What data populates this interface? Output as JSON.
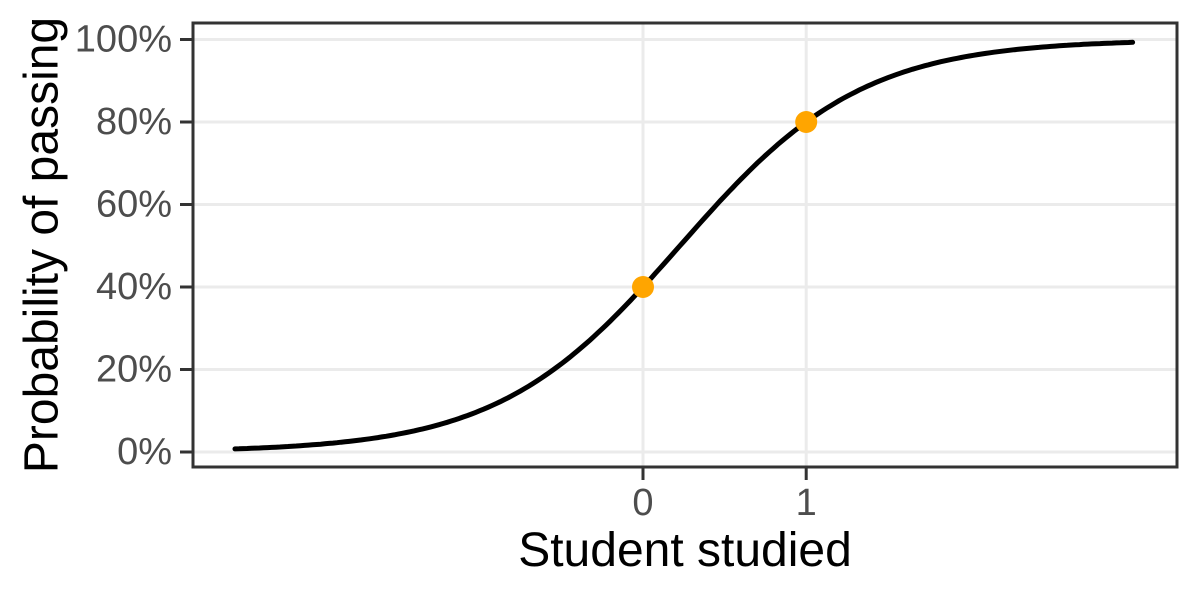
{
  "chart_data": {
    "type": "line",
    "title": "",
    "xlabel": "Student studied",
    "ylabel": "Probability of passing",
    "x_ticks": [
      {
        "value": 0,
        "label": "0"
      },
      {
        "value": 1,
        "label": "1"
      }
    ],
    "y_ticks": [
      {
        "value": 0.0,
        "label": "0%"
      },
      {
        "value": 0.2,
        "label": "20%"
      },
      {
        "value": 0.4,
        "label": "40%"
      },
      {
        "value": 0.6,
        "label": "60%"
      },
      {
        "value": 0.8,
        "label": "80%"
      },
      {
        "value": 1.0,
        "label": "100%"
      }
    ],
    "xlim": [
      -2.76,
      3.27
    ],
    "ylim": [
      -0.036,
      1.04
    ],
    "grid": "major-only",
    "legend": "none",
    "curve": {
      "model": "logistic",
      "intercept": -0.405465,
      "slope": 1.791759,
      "x_domain": [
        -2.5,
        3.0
      ],
      "color": "#000000",
      "stroke_width": 5
    },
    "points": {
      "color": "#FFA500",
      "radius": 11,
      "data": [
        {
          "x": 0,
          "y": 0.4
        },
        {
          "x": 1,
          "y": 0.8
        }
      ]
    },
    "colors": {
      "background": "#FFFFFF",
      "panel_background": "#FFFFFF",
      "gridline": "#EBEBEB",
      "panel_border": "#333333",
      "tick_mark": "#333333",
      "tick_label": "#4D4D4D",
      "axis_title": "#000000"
    }
  }
}
